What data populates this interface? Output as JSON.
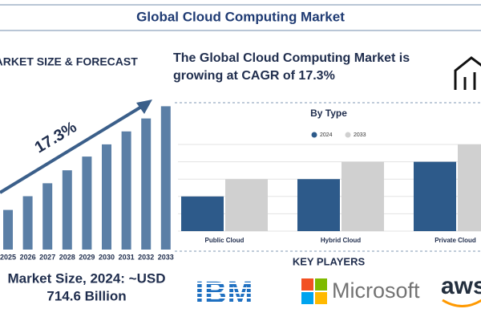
{
  "header": {
    "title": "Global Cloud Computing Market"
  },
  "headline": "The Global Cloud Computing Market is growing at CAGR of 17.3%",
  "market_size": {
    "line1": "Market Size, 2024: ~USD",
    "line2": "714.6 Billion"
  },
  "key_players": {
    "title": "KEY PLAYERS",
    "logos": [
      "IBM",
      "Microsoft",
      "aws"
    ]
  },
  "chart_data": [
    {
      "type": "bar",
      "title": "MARKET SIZE & FORECAST",
      "annotation": "17.3%",
      "categories": [
        "2025",
        "2026",
        "2027",
        "2028",
        "2029",
        "2030",
        "2031",
        "2032",
        "2033"
      ],
      "values": [
        52,
        70,
        87,
        104,
        122,
        138,
        155,
        172,
        188
      ],
      "color": "#5b7fa6",
      "ylim": [
        0,
        200
      ]
    },
    {
      "type": "grouped_bar",
      "title": "By Type",
      "categories": [
        "Public Cloud",
        "Hybrid Cloud",
        "Private Cloud"
      ],
      "series": [
        {
          "name": "2024",
          "color": "#2d5a8a",
          "values": [
            2,
            3,
            4
          ]
        },
        {
          "name": "2033",
          "color": "#d0d0d0",
          "values": [
            3,
            4,
            5
          ]
        }
      ],
      "ylim": [
        0,
        5
      ],
      "yticks": [
        0,
        1,
        2,
        3,
        4,
        5
      ],
      "grid": true
    }
  ]
}
